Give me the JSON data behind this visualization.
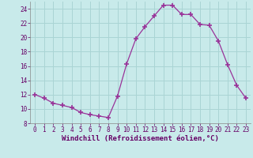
{
  "x": [
    0,
    1,
    2,
    3,
    4,
    5,
    6,
    7,
    8,
    9,
    10,
    11,
    12,
    13,
    14,
    15,
    16,
    17,
    18,
    19,
    20,
    21,
    22,
    23
  ],
  "y": [
    12.0,
    11.5,
    10.8,
    10.5,
    10.2,
    9.5,
    9.2,
    9.0,
    8.8,
    11.8,
    16.3,
    19.8,
    21.5,
    23.0,
    24.5,
    24.5,
    23.2,
    23.2,
    21.8,
    21.7,
    19.5,
    16.2,
    13.3,
    11.5
  ],
  "line_color": "#993399",
  "marker_color": "#993399",
  "bg_color": "#c8eaea",
  "grid_color": "#aad4d4",
  "xlabel": "Windchill (Refroidissement éolien,°C)",
  "ylim": [
    8,
    25
  ],
  "xlim": [
    -0.5,
    23.5
  ],
  "yticks": [
    8,
    10,
    12,
    14,
    16,
    18,
    20,
    22,
    24
  ],
  "xticks": [
    0,
    1,
    2,
    3,
    4,
    5,
    6,
    7,
    8,
    9,
    10,
    11,
    12,
    13,
    14,
    15,
    16,
    17,
    18,
    19,
    20,
    21,
    22,
    23
  ],
  "xlabel_fontsize": 6.5,
  "tick_fontsize": 5.5
}
